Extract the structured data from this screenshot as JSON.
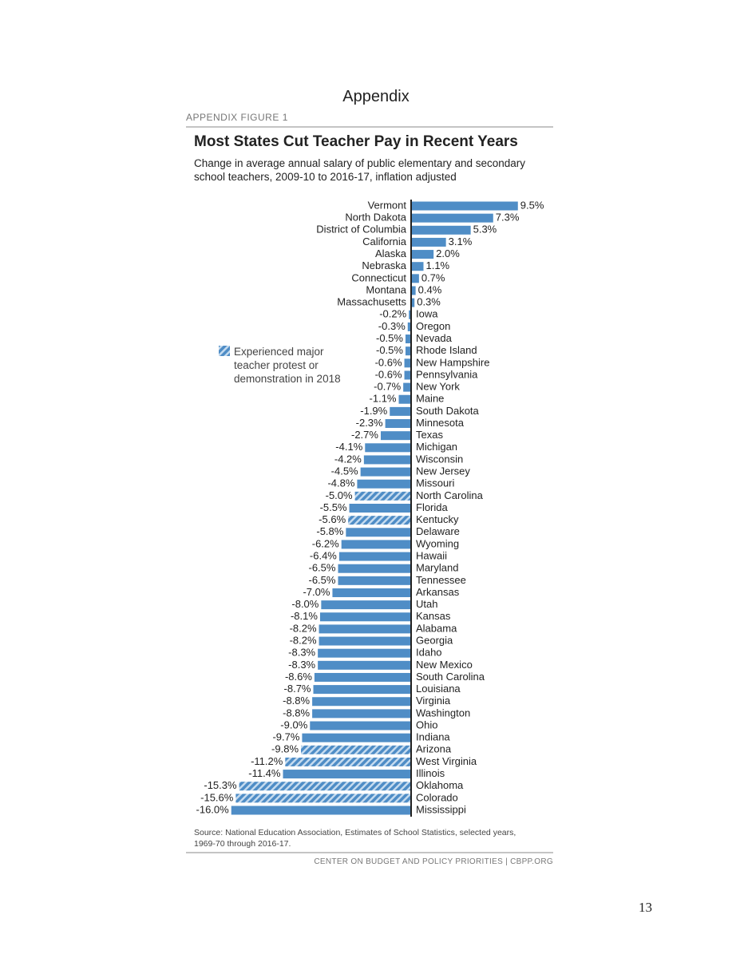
{
  "header": {
    "heading": "Appendix",
    "figure_label": "APPENDIX FIGURE 1"
  },
  "chart_data": {
    "type": "hbar-diverging",
    "title": "Most States Cut Teacher Pay in Recent Years",
    "subtitle": "Change in average annual salary of public elementary and secondary school teachers, 2009-10 to 2016-17, inflation adjusted",
    "categories": [
      "Vermont",
      "North Dakota",
      "District of Columbia",
      "California",
      "Alaska",
      "Nebraska",
      "Connecticut",
      "Montana",
      "Massachusetts",
      "Iowa",
      "Oregon",
      "Nevada",
      "Rhode Island",
      "New Hampshire",
      "Pennsylvania",
      "New York",
      "Maine",
      "South Dakota",
      "Minnesota",
      "Texas",
      "Michigan",
      "Wisconsin",
      "New Jersey",
      "Missouri",
      "North Carolina",
      "Florida",
      "Kentucky",
      "Delaware",
      "Wyoming",
      "Hawaii",
      "Maryland",
      "Tennessee",
      "Arkansas",
      "Utah",
      "Kansas",
      "Alabama",
      "Georgia",
      "Idaho",
      "New Mexico",
      "South Carolina",
      "Louisiana",
      "Virginia",
      "Washington",
      "Ohio",
      "Indiana",
      "Arizona",
      "West Virginia",
      "Illinois",
      "Oklahoma",
      "Colorado",
      "Mississippi"
    ],
    "values": [
      9.5,
      7.3,
      5.3,
      3.1,
      2.0,
      1.1,
      0.7,
      0.4,
      0.3,
      -0.2,
      -0.3,
      -0.5,
      -0.5,
      -0.6,
      -0.6,
      -0.7,
      -1.1,
      -1.9,
      -2.3,
      -2.7,
      -4.1,
      -4.2,
      -4.5,
      -4.8,
      -5.0,
      -5.5,
      -5.6,
      -5.8,
      -6.2,
      -6.4,
      -6.5,
      -6.5,
      -7.0,
      -8.0,
      -8.1,
      -8.2,
      -8.2,
      -8.3,
      -8.3,
      -8.6,
      -8.7,
      -8.8,
      -8.8,
      -9.0,
      -9.7,
      -9.8,
      -11.2,
      -11.4,
      -15.3,
      -15.6,
      -16.0
    ],
    "value_labels": [
      "9.5%",
      "7.3%",
      "5.3%",
      "3.1%",
      "2.0%",
      "1.1%",
      "0.7%",
      "0.4%",
      "0.3%",
      "-0.2%",
      "-0.3%",
      "-0.5%",
      "-0.5%",
      "-0.6%",
      "-0.6%",
      "-0.7%",
      "-1.1%",
      "-1.9%",
      "-2.3%",
      "-2.7%",
      "-4.1%",
      "-4.2%",
      "-4.5%",
      "-4.8%",
      "-5.0%",
      "-5.5%",
      "-5.6%",
      "-5.8%",
      "-6.2%",
      "-6.4%",
      "-6.5%",
      "-6.5%",
      "-7.0%",
      "-8.0%",
      "-8.1%",
      "-8.2%",
      "-8.2%",
      "-8.3%",
      "-8.3%",
      "-8.6%",
      "-8.7%",
      "-8.8%",
      "-8.8%",
      "-9.0%",
      "-9.7%",
      "-9.8%",
      "-11.2%",
      "-11.4%",
      "-15.3%",
      "-15.6%",
      "-16.0%"
    ],
    "hatched": [
      false,
      false,
      false,
      false,
      false,
      false,
      false,
      false,
      false,
      false,
      false,
      false,
      false,
      false,
      false,
      false,
      false,
      false,
      false,
      false,
      false,
      false,
      false,
      false,
      true,
      false,
      true,
      false,
      false,
      false,
      false,
      false,
      false,
      false,
      false,
      false,
      false,
      false,
      false,
      false,
      false,
      false,
      false,
      false,
      false,
      true,
      true,
      false,
      true,
      true,
      false
    ],
    "color": "#4f8dc6",
    "legend": "Experienced major teacher protest or demonstration in 2018",
    "source": "Source: National Education Association, Estimates of School Statistics, selected years, 1969-70 through 2016-17."
  },
  "footer": "CENTER ON BUDGET AND POLICY PRIORITIES | CBPP.ORG",
  "page_number": "13"
}
